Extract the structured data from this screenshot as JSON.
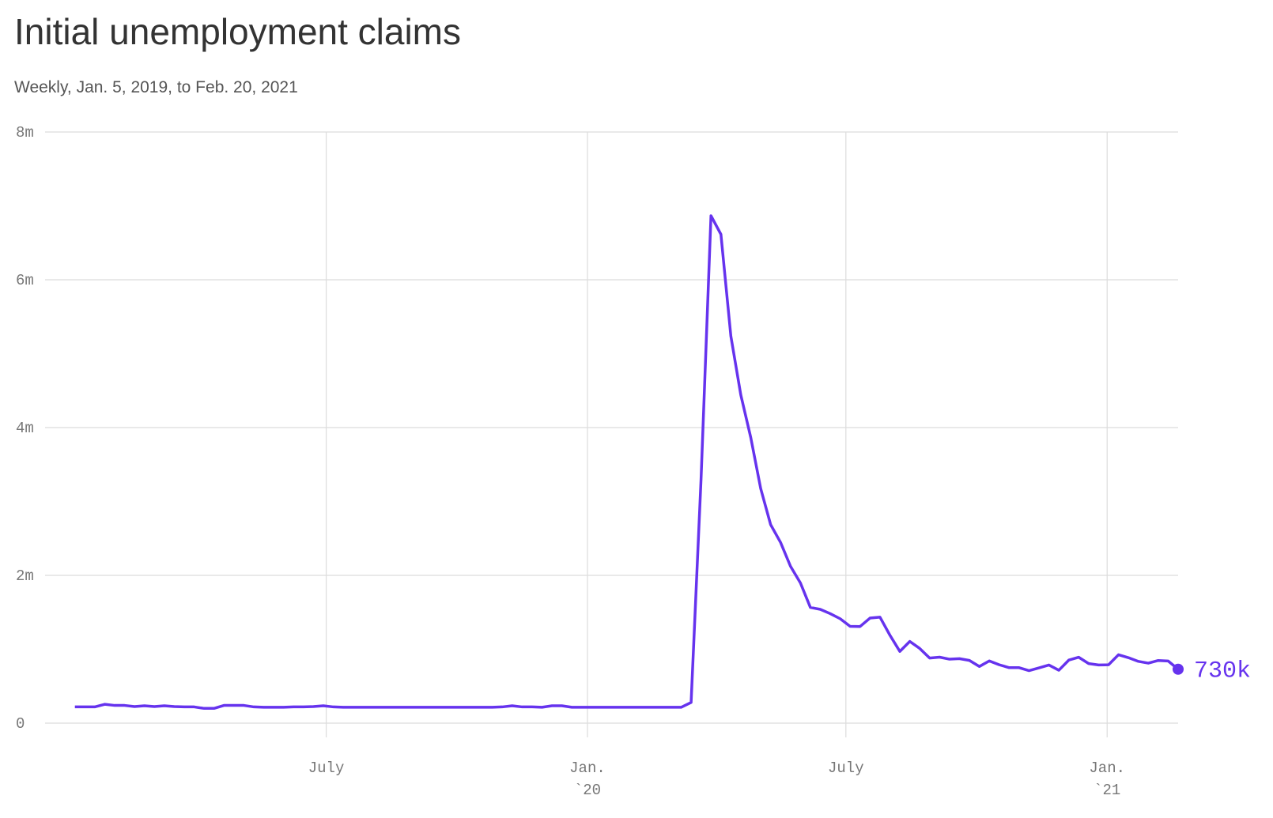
{
  "chart_data": {
    "type": "line",
    "title": "Initial unemployment claims",
    "subtitle": "Weekly, Jan. 5, 2019, to Feb. 20, 2021",
    "color": "#6633ee",
    "x": [
      "2019-01-05",
      "2019-01-12",
      "2019-01-19",
      "2019-01-26",
      "2019-02-02",
      "2019-02-09",
      "2019-02-16",
      "2019-02-23",
      "2019-03-02",
      "2019-03-09",
      "2019-03-16",
      "2019-03-23",
      "2019-03-30",
      "2019-04-06",
      "2019-04-13",
      "2019-04-20",
      "2019-04-27",
      "2019-05-04",
      "2019-05-11",
      "2019-05-18",
      "2019-05-25",
      "2019-06-01",
      "2019-06-08",
      "2019-06-15",
      "2019-06-22",
      "2019-06-29",
      "2019-07-06",
      "2019-07-13",
      "2019-07-20",
      "2019-07-27",
      "2019-08-03",
      "2019-08-10",
      "2019-08-17",
      "2019-08-24",
      "2019-08-31",
      "2019-09-07",
      "2019-09-14",
      "2019-09-21",
      "2019-09-28",
      "2019-10-05",
      "2019-10-12",
      "2019-10-19",
      "2019-10-26",
      "2019-11-02",
      "2019-11-09",
      "2019-11-16",
      "2019-11-23",
      "2019-11-30",
      "2019-12-07",
      "2019-12-14",
      "2019-12-21",
      "2019-12-28",
      "2020-01-04",
      "2020-01-11",
      "2020-01-18",
      "2020-01-25",
      "2020-02-01",
      "2020-02-08",
      "2020-02-15",
      "2020-02-22",
      "2020-02-29",
      "2020-03-07",
      "2020-03-14",
      "2020-03-21",
      "2020-03-28",
      "2020-04-04",
      "2020-04-11",
      "2020-04-18",
      "2020-04-25",
      "2020-05-02",
      "2020-05-09",
      "2020-05-16",
      "2020-05-23",
      "2020-05-30",
      "2020-06-06",
      "2020-06-13",
      "2020-06-20",
      "2020-06-27",
      "2020-07-04",
      "2020-07-11",
      "2020-07-18",
      "2020-07-25",
      "2020-08-01",
      "2020-08-08",
      "2020-08-15",
      "2020-08-22",
      "2020-08-29",
      "2020-09-05",
      "2020-09-12",
      "2020-09-19",
      "2020-09-26",
      "2020-10-03",
      "2020-10-10",
      "2020-10-17",
      "2020-10-24",
      "2020-10-31",
      "2020-11-07",
      "2020-11-14",
      "2020-11-21",
      "2020-11-28",
      "2020-12-05",
      "2020-12-12",
      "2020-12-19",
      "2020-12-26",
      "2021-01-02",
      "2021-01-09",
      "2021-01-16",
      "2021-01-23",
      "2021-01-30",
      "2021-02-06",
      "2021-02-13",
      "2021-02-20"
    ],
    "values": [
      220000,
      220000,
      220000,
      255000,
      240000,
      240000,
      225000,
      235000,
      225000,
      235000,
      225000,
      220000,
      220000,
      200000,
      200000,
      240000,
      240000,
      240000,
      220000,
      215000,
      215000,
      215000,
      220000,
      220000,
      225000,
      235000,
      220000,
      215000,
      215000,
      215000,
      215000,
      215000,
      215000,
      215000,
      215000,
      215000,
      215000,
      215000,
      215000,
      215000,
      215000,
      215000,
      215000,
      220000,
      235000,
      220000,
      220000,
      215000,
      235000,
      235000,
      215000,
      215000,
      215000,
      215000,
      215000,
      215000,
      215000,
      215000,
      215000,
      215000,
      215000,
      215000,
      280000,
      3300000,
      6867000,
      6615000,
      5237000,
      4442000,
      3867000,
      3176000,
      2687000,
      2446000,
      2123000,
      1897000,
      1566000,
      1540000,
      1482000,
      1413000,
      1310000,
      1308000,
      1422000,
      1435000,
      1191000,
      971000,
      1106000,
      1011000,
      881000,
      893000,
      866000,
      873000,
      849000,
      767000,
      842000,
      790000,
      751000,
      751000,
      711000,
      748000,
      787000,
      716000,
      853000,
      892000,
      806000,
      787000,
      790000,
      926000,
      886000,
      836000,
      812000,
      848000,
      841000,
      730000
    ],
    "value_labels": [
      null,
      null,
      null,
      null,
      null,
      null,
      null,
      null,
      null,
      null,
      null,
      null,
      null,
      null,
      null,
      null,
      null,
      null,
      null,
      null,
      null,
      null,
      null,
      null,
      null,
      null,
      null,
      null,
      null,
      null,
      null,
      null,
      null,
      null,
      null,
      null,
      null,
      null,
      null,
      null,
      null,
      null,
      null,
      null,
      null,
      null,
      null,
      null,
      null,
      null,
      null,
      null,
      null,
      null,
      null,
      null,
      null,
      null,
      null,
      null,
      null,
      null,
      null,
      null,
      null,
      null,
      null,
      null,
      null,
      null,
      null,
      null,
      null,
      null,
      null,
      null,
      null,
      null,
      null,
      null,
      null,
      null,
      null,
      null,
      null,
      null,
      null,
      null,
      null,
      null,
      null,
      null,
      null,
      null,
      null,
      null,
      null,
      null,
      null,
      null,
      null,
      null,
      null,
      null,
      null,
      null,
      null,
      null,
      null,
      null,
      null,
      "730k"
    ],
    "xlim": [
      "2018-12-15",
      "2021-02-20"
    ],
    "xticks": [
      {
        "value": "2019-07-01",
        "label": [
          "July"
        ]
      },
      {
        "value": "2020-01-01",
        "label": [
          "Jan.",
          "`20"
        ]
      },
      {
        "value": "2020-07-01",
        "label": [
          "July"
        ]
      },
      {
        "value": "2021-01-01",
        "label": [
          "Jan.",
          "`21"
        ]
      }
    ],
    "ylim": [
      0,
      8000000
    ],
    "yticks": [
      {
        "value": 0,
        "label": "0"
      },
      {
        "value": 2000000,
        "label": "2m"
      },
      {
        "value": 4000000,
        "label": "4m"
      },
      {
        "value": 6000000,
        "label": "6m"
      },
      {
        "value": 8000000,
        "label": "8m"
      }
    ],
    "grid": true
  }
}
